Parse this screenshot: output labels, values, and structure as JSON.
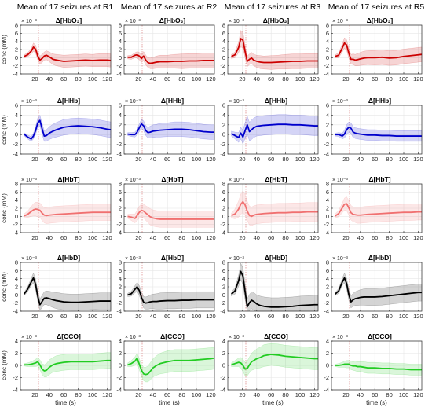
{
  "figure": {
    "column_titles": [
      "Mean of 17 seizures at R1",
      "Mean of 17 seizures at R2",
      "Mean of 17 seizures at R3",
      "Mean of 17 seizures at R5"
    ],
    "ylabel": "conc (mM)",
    "xlabel": "time (s)",
    "exponent_label": "× 10⁻³"
  },
  "chart_data": {
    "type": "line",
    "xlim": [
      0,
      125
    ],
    "x_ticks": [
      20,
      40,
      60,
      80,
      100,
      120
    ],
    "seizure_onset_marker_s": 25,
    "rows": [
      {
        "title": "Δ[HbO₂]",
        "color": "#cc0000",
        "ylim": [
          -4,
          8
        ],
        "y_ticks": [
          -4,
          -2,
          0,
          2,
          4,
          6,
          8
        ]
      },
      {
        "title": "Δ[HHb]",
        "color": "#0000cc",
        "ylim": [
          -4,
          6
        ],
        "y_ticks": [
          -4,
          -2,
          0,
          2,
          4,
          6
        ]
      },
      {
        "title": "Δ[HbT]",
        "color": "#f07070",
        "ylim": [
          -4,
          8
        ],
        "y_ticks": [
          -4,
          -2,
          0,
          2,
          4,
          6,
          8
        ]
      },
      {
        "title": "Δ[HbD]",
        "color": "#000000",
        "ylim": [
          -4,
          8
        ],
        "y_ticks": [
          -4,
          -2,
          0,
          2,
          4,
          6,
          8
        ]
      },
      {
        "title": "Δ[CCO]",
        "color": "#22cc22",
        "ylim": [
          -4,
          4
        ],
        "y_ticks": [
          -4,
          -2,
          0,
          2,
          4
        ]
      }
    ],
    "x": [
      5,
      10,
      15,
      18,
      21,
      24,
      27,
      30,
      33,
      36,
      40,
      45,
      50,
      60,
      70,
      80,
      90,
      100,
      110,
      120,
      125
    ],
    "series": [
      [
        {
          "panel": "R1",
          "mean": [
            0.3,
            0.7,
            1.6,
            2.6,
            2.1,
            0.4,
            -0.6,
            -0.2,
            0.4,
            0.6,
            0.2,
            -0.4,
            -0.6,
            -0.9,
            -0.8,
            -0.7,
            -0.6,
            -0.7,
            -0.6,
            -0.6,
            -0.7
          ],
          "spread": [
            0.4,
            0.5,
            0.7,
            1.0,
            1.0,
            0.9,
            1.0,
            1.0,
            1.0,
            1.1,
            1.2,
            1.3,
            1.4,
            1.5,
            1.5,
            1.5,
            1.5,
            1.5,
            1.6,
            1.6,
            1.6
          ]
        },
        {
          "panel": "R2",
          "mean": [
            0.1,
            0.1,
            0.6,
            0.7,
            0.4,
            -0.2,
            0.4,
            -0.6,
            -1.2,
            -1.4,
            -1.3,
            -1.1,
            -1.0,
            -1.0,
            -0.9,
            -0.9,
            -0.8,
            -0.8,
            -0.7,
            -0.7,
            -0.7
          ],
          "spread": [
            0.4,
            0.5,
            0.6,
            0.8,
            0.9,
            1.0,
            1.1,
            1.2,
            1.2,
            1.3,
            1.4,
            1.5,
            1.6,
            1.6,
            1.7,
            1.8,
            1.8,
            1.8,
            1.8,
            1.8,
            1.8
          ]
        },
        {
          "panel": "R3",
          "mean": [
            0.3,
            0.7,
            2.5,
            4.7,
            4.3,
            1.5,
            -0.9,
            -0.4,
            -0.1,
            -0.6,
            -0.9,
            -1.1,
            -1.2,
            -1.2,
            -1.1,
            -1.0,
            -0.9,
            -0.9,
            -0.8,
            -0.8,
            -0.8
          ],
          "spread": [
            0.5,
            0.7,
            1.3,
            2.0,
            2.0,
            1.5,
            1.3,
            1.3,
            1.4,
            1.4,
            1.5,
            1.6,
            1.6,
            1.7,
            1.7,
            1.8,
            1.8,
            1.8,
            1.8,
            1.8,
            1.8
          ]
        },
        {
          "panel": "R5",
          "mean": [
            0.3,
            0.6,
            2.4,
            3.6,
            3.1,
            1.1,
            -0.4,
            -0.4,
            -0.6,
            -0.5,
            -0.3,
            -0.1,
            0.0,
            0.0,
            0.1,
            -0.1,
            0.0,
            0.3,
            0.5,
            0.7,
            0.8
          ],
          "spread": [
            0.4,
            0.6,
            1.0,
            1.3,
            1.3,
            1.2,
            1.2,
            1.3,
            1.4,
            1.5,
            1.6,
            1.7,
            1.7,
            1.8,
            1.8,
            1.8,
            1.8,
            1.8,
            1.8,
            1.8,
            1.8
          ]
        }
      ],
      [
        {
          "panel": "R1",
          "mean": [
            0.1,
            -0.5,
            -0.9,
            -0.3,
            0.8,
            2.4,
            2.9,
            1.2,
            -0.3,
            -0.2,
            0.3,
            0.7,
            1.0,
            1.5,
            1.7,
            1.8,
            1.7,
            1.6,
            1.4,
            1.1,
            1.0
          ],
          "spread": [
            0.3,
            0.4,
            0.5,
            0.6,
            0.8,
            1.0,
            1.1,
            1.1,
            1.1,
            1.2,
            1.3,
            1.4,
            1.5,
            1.6,
            1.6,
            1.6,
            1.6,
            1.6,
            1.6,
            1.6,
            1.6
          ]
        },
        {
          "panel": "R2",
          "mean": [
            0.1,
            0.0,
            0.0,
            0.5,
            1.4,
            2.2,
            1.8,
            0.8,
            0.4,
            0.5,
            0.7,
            0.8,
            0.9,
            1.0,
            1.1,
            1.1,
            1.0,
            0.8,
            0.6,
            0.5,
            0.5
          ],
          "spread": [
            0.3,
            0.4,
            0.5,
            0.6,
            0.8,
            0.9,
            1.0,
            1.0,
            1.1,
            1.2,
            1.3,
            1.3,
            1.4,
            1.4,
            1.5,
            1.5,
            1.5,
            1.5,
            1.5,
            1.5,
            1.5
          ]
        },
        {
          "panel": "R3",
          "mean": [
            0.2,
            -0.2,
            -0.6,
            0.3,
            -0.5,
            0.8,
            2.0,
            0.6,
            1.0,
            1.4,
            1.7,
            1.8,
            1.9,
            2.0,
            2.1,
            2.1,
            2.0,
            2.0,
            1.9,
            1.8,
            1.8
          ],
          "spread": [
            0.5,
            0.7,
            1.0,
            1.2,
            1.4,
            1.6,
            1.8,
            1.9,
            2.0,
            2.0,
            2.0,
            2.0,
            2.0,
            2.0,
            2.0,
            2.0,
            2.0,
            2.0,
            2.0,
            2.0,
            2.0
          ]
        },
        {
          "panel": "R5",
          "mean": [
            0.0,
            0.0,
            -0.3,
            0.1,
            1.0,
            1.5,
            1.3,
            0.5,
            0.3,
            0.2,
            0.1,
            0.0,
            -0.1,
            -0.1,
            -0.2,
            -0.2,
            -0.3,
            -0.3,
            -0.3,
            -0.3,
            -0.3
          ],
          "spread": [
            0.3,
            0.4,
            0.6,
            0.8,
            1.0,
            1.1,
            1.1,
            1.1,
            1.1,
            1.1,
            1.1,
            1.1,
            1.1,
            1.1,
            1.1,
            1.1,
            1.1,
            1.1,
            1.1,
            1.1,
            1.1
          ]
        }
      ],
      [
        {
          "panel": "R1",
          "mean": [
            0.1,
            0.5,
            1.2,
            1.6,
            1.8,
            1.7,
            1.5,
            0.8,
            0.3,
            0.2,
            0.3,
            0.4,
            0.5,
            0.6,
            0.7,
            0.8,
            0.9,
            1.0,
            1.0,
            1.0,
            1.0
          ],
          "spread": [
            0.5,
            0.8,
            1.2,
            1.5,
            1.7,
            1.8,
            1.8,
            1.8,
            1.9,
            2.0,
            2.0,
            2.0,
            2.0,
            2.0,
            2.0,
            2.0,
            2.0,
            2.0,
            2.0,
            2.0,
            2.0
          ]
        },
        {
          "panel": "R2",
          "mean": [
            0.0,
            -0.2,
            -0.5,
            0.2,
            1.0,
            1.5,
            1.3,
            0.8,
            0.4,
            -0.1,
            -0.4,
            -0.6,
            -0.7,
            -0.7,
            -0.7,
            -0.7,
            -0.7,
            -0.7,
            -0.7,
            -0.7,
            -0.7
          ],
          "spread": [
            0.5,
            0.8,
            1.1,
            1.3,
            1.5,
            1.6,
            1.7,
            1.8,
            1.9,
            2.0,
            2.0,
            2.0,
            2.0,
            2.0,
            2.0,
            2.0,
            2.0,
            2.0,
            2.0,
            2.0,
            2.0
          ]
        },
        {
          "panel": "R3",
          "mean": [
            0.2,
            0.6,
            1.8,
            3.0,
            3.6,
            2.8,
            1.3,
            0.2,
            0.0,
            0.3,
            0.5,
            0.6,
            0.7,
            0.8,
            0.9,
            0.9,
            1.0,
            1.0,
            1.1,
            1.1,
            1.1
          ],
          "spread": [
            0.6,
            1.2,
            2.0,
            2.5,
            2.7,
            2.6,
            2.4,
            2.3,
            2.3,
            2.3,
            2.3,
            2.3,
            2.3,
            2.3,
            2.3,
            2.3,
            2.3,
            2.3,
            2.3,
            2.3,
            2.3
          ]
        },
        {
          "panel": "R5",
          "mean": [
            0.1,
            0.7,
            2.1,
            3.0,
            3.1,
            2.1,
            0.9,
            0.5,
            0.4,
            0.3,
            0.3,
            0.4,
            0.5,
            0.6,
            0.7,
            0.8,
            0.9,
            1.0,
            1.0,
            1.1,
            1.1
          ],
          "spread": [
            0.5,
            0.8,
            1.2,
            1.5,
            1.7,
            1.8,
            1.8,
            1.8,
            1.9,
            2.0,
            2.0,
            2.0,
            2.0,
            2.0,
            2.0,
            2.0,
            2.0,
            2.0,
            2.0,
            2.0,
            2.0
          ]
        }
      ],
      [
        {
          "panel": "R1",
          "mean": [
            0.2,
            1.4,
            3.2,
            4.2,
            2.6,
            -0.3,
            -2.4,
            -1.6,
            -0.8,
            -0.7,
            -0.9,
            -1.2,
            -1.4,
            -1.7,
            -1.8,
            -1.8,
            -1.7,
            -1.6,
            -1.5,
            -1.5,
            -1.5
          ],
          "spread": [
            0.4,
            0.6,
            0.9,
            1.2,
            1.3,
            1.3,
            1.4,
            1.5,
            1.6,
            1.7,
            1.8,
            1.9,
            2.0,
            2.0,
            2.0,
            2.0,
            2.0,
            2.0,
            2.0,
            2.0,
            2.0
          ]
        },
        {
          "panel": "R2",
          "mean": [
            0.0,
            0.3,
            1.4,
            2.0,
            1.1,
            -0.6,
            -1.8,
            -2.0,
            -1.9,
            -1.7,
            -1.6,
            -1.6,
            -1.5,
            -1.4,
            -1.4,
            -1.3,
            -1.3,
            -1.2,
            -1.2,
            -1.2,
            -1.2
          ],
          "spread": [
            0.4,
            0.6,
            0.9,
            1.1,
            1.2,
            1.3,
            1.4,
            1.5,
            1.6,
            1.7,
            1.8,
            1.9,
            2.0,
            2.0,
            2.0,
            2.0,
            2.0,
            2.0,
            2.0,
            2.0,
            2.0
          ]
        },
        {
          "panel": "R3",
          "mean": [
            0.2,
            1.0,
            3.5,
            5.8,
            4.6,
            0.8,
            -2.9,
            -1.9,
            -1.3,
            -1.6,
            -2.2,
            -2.6,
            -2.8,
            -3.0,
            -3.0,
            -2.9,
            -2.8,
            -2.6,
            -2.5,
            -2.4,
            -2.4
          ],
          "spread": [
            0.5,
            0.8,
            1.4,
            2.0,
            2.1,
            2.0,
            2.0,
            2.0,
            2.1,
            2.2,
            2.2,
            2.3,
            2.3,
            2.3,
            2.3,
            2.3,
            2.3,
            2.3,
            2.3,
            2.3,
            2.3
          ]
        },
        {
          "panel": "R5",
          "mean": [
            0.2,
            1.0,
            3.2,
            4.2,
            2.8,
            0.1,
            -1.7,
            -1.2,
            -0.9,
            -0.8,
            -0.6,
            -0.5,
            -0.5,
            -0.5,
            -0.4,
            -0.2,
            0.0,
            0.2,
            0.4,
            0.6,
            0.6
          ],
          "spread": [
            0.4,
            0.6,
            0.9,
            1.2,
            1.3,
            1.4,
            1.5,
            1.6,
            1.7,
            1.8,
            1.9,
            2.0,
            2.1,
            2.1,
            2.1,
            2.1,
            2.1,
            2.1,
            2.1,
            2.1,
            2.1
          ]
        }
      ],
      [
        {
          "panel": "R1",
          "mean": [
            0.1,
            0.1,
            0.2,
            0.3,
            0.4,
            0.6,
            0.1,
            -0.6,
            -0.9,
            -0.8,
            -0.3,
            0.1,
            0.3,
            0.5,
            0.6,
            0.6,
            0.6,
            0.6,
            0.7,
            0.8,
            0.8
          ],
          "spread": [
            0.2,
            0.3,
            0.4,
            0.5,
            0.6,
            0.7,
            0.8,
            0.9,
            1.0,
            1.1,
            1.2,
            1.2,
            1.3,
            1.3,
            1.3,
            1.3,
            1.3,
            1.3,
            1.3,
            1.3,
            1.3
          ]
        },
        {
          "panel": "R2",
          "mean": [
            0.1,
            0.3,
            0.7,
            1.2,
            0.2,
            -0.8,
            -1.4,
            -1.5,
            -1.4,
            -1.0,
            -0.4,
            0.0,
            0.3,
            0.6,
            0.8,
            0.8,
            0.8,
            0.9,
            1.0,
            1.1,
            1.2
          ],
          "spread": [
            0.3,
            0.5,
            0.7,
            0.8,
            0.9,
            1.0,
            1.1,
            1.2,
            1.3,
            1.4,
            1.5,
            1.6,
            1.7,
            1.8,
            1.8,
            1.8,
            1.8,
            1.8,
            1.8,
            1.8,
            1.8
          ]
        },
        {
          "panel": "R3",
          "mean": [
            0.1,
            0.3,
            0.5,
            0.4,
            0.0,
            -0.6,
            -0.5,
            0.1,
            0.6,
            0.8,
            1.1,
            1.3,
            1.6,
            1.8,
            1.7,
            1.5,
            1.4,
            1.3,
            1.2,
            1.1,
            1.1
          ],
          "spread": [
            0.3,
            0.5,
            0.7,
            0.9,
            1.0,
            1.1,
            1.2,
            1.3,
            1.4,
            1.5,
            1.6,
            1.7,
            1.8,
            1.8,
            1.8,
            1.8,
            1.8,
            1.8,
            1.8,
            1.8,
            1.8
          ]
        },
        {
          "panel": "R5",
          "mean": [
            0.0,
            0.0,
            0.1,
            0.2,
            0.2,
            0.2,
            0.0,
            -0.1,
            -0.1,
            -0.2,
            -0.2,
            -0.3,
            -0.4,
            -0.4,
            -0.5,
            -0.5,
            -0.6,
            -0.6,
            -0.7,
            -0.7,
            -0.7
          ],
          "spread": [
            0.2,
            0.3,
            0.4,
            0.5,
            0.6,
            0.6,
            0.7,
            0.7,
            0.8,
            0.8,
            0.8,
            0.9,
            0.9,
            0.9,
            0.9,
            0.9,
            0.9,
            0.9,
            0.9,
            0.9,
            0.9
          ]
        }
      ]
    ]
  }
}
